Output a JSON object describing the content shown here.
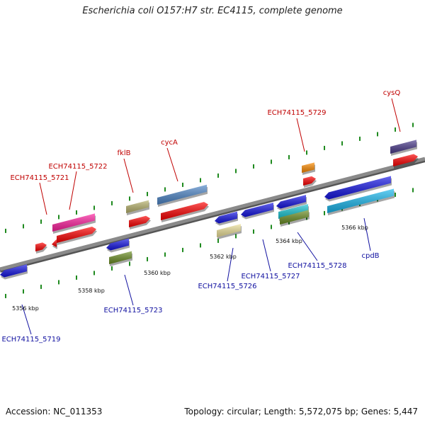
{
  "title": "Escherichia coli O157:H7 str. EC4115, complete genome",
  "footer": {
    "accession": "Accession: NC_011353",
    "summary": "Topology: circular; Length: 5,572,075 bp; Genes: 5,447"
  },
  "colors": {
    "backbone": "#8a8a8a",
    "dot": "#1f8a1f",
    "forward_label": "#c00000",
    "reverse_label": "#1010a0"
  },
  "scale_ticks": [
    "5356 kbp",
    "5358 kbp",
    "5360 kbp",
    "5362 kbp",
    "5364 kbp",
    "5366 kbp"
  ],
  "forward_labels": [
    "ECH74115_5721",
    "ECH74115_5722",
    "fklB",
    "cycA",
    "ECH74115_5729",
    "cysQ"
  ],
  "reverse_labels": [
    "ECH74115_5719",
    "ECH74115_5723",
    "ECH74115_5726",
    "ECH74115_5727",
    "ECH74115_5728",
    "cpdB"
  ]
}
